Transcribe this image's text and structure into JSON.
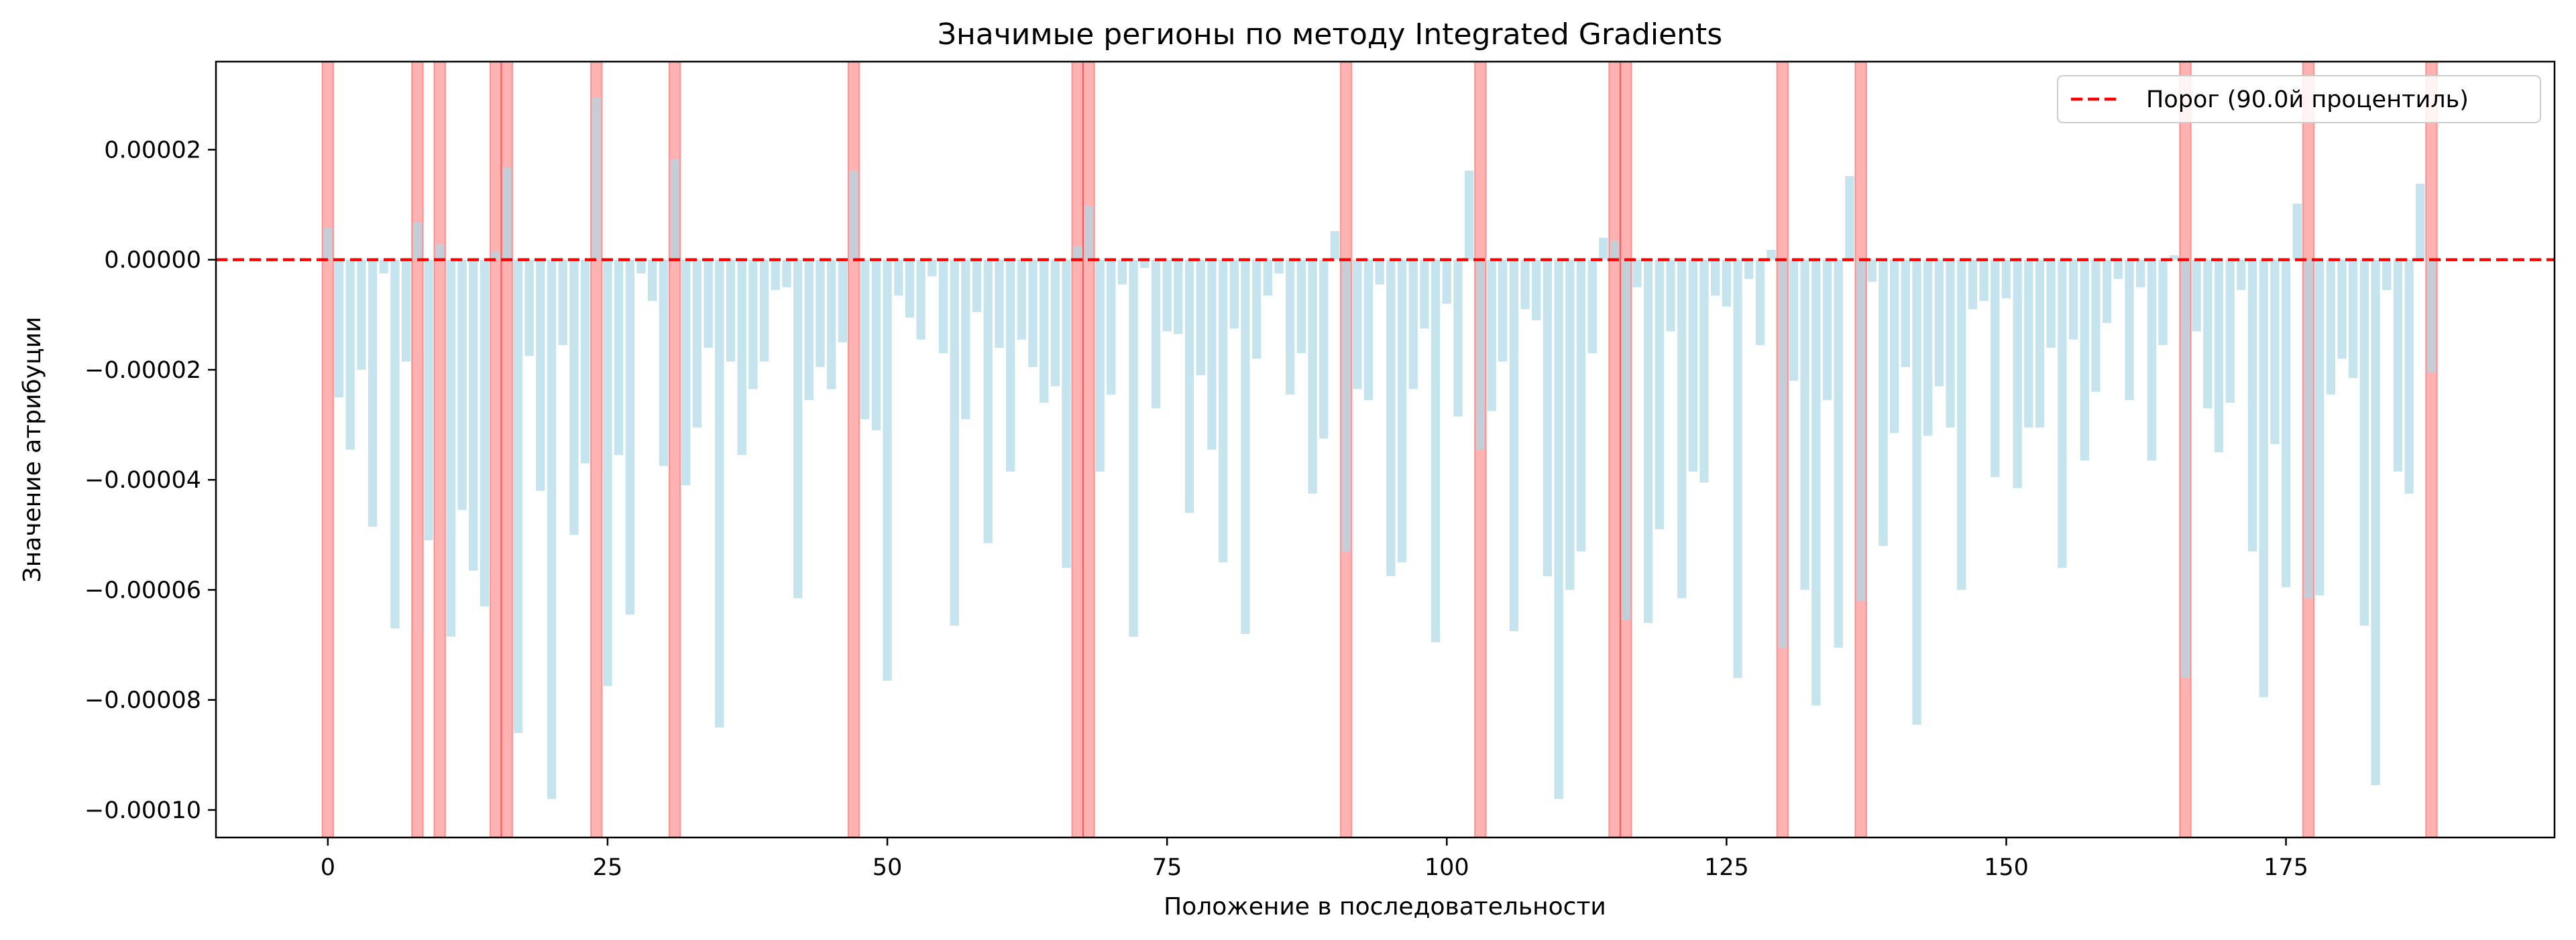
{
  "chart_data": {
    "type": "bar",
    "title": "Значимые регионы по методу Integrated Gradients",
    "xlabel": "Положение в последовательности",
    "ylabel": "Значение атрибуции",
    "xlim": [
      -10,
      199
    ],
    "ylim": [
      -0.000105,
      3.6e-05
    ],
    "x_ticks": [
      0,
      25,
      50,
      75,
      100,
      125,
      150,
      175
    ],
    "x_tick_labels": [
      "0",
      "25",
      "50",
      "75",
      "100",
      "125",
      "150",
      "175"
    ],
    "y_ticks": [
      2e-05,
      0.0,
      -2e-05,
      -4e-05,
      -6e-05,
      -8e-05,
      -0.0001
    ],
    "y_tick_labels": [
      "0.00002",
      "0.00000",
      "−0.00002",
      "−0.00004",
      "−0.00006",
      "−0.00008",
      "−0.00010"
    ],
    "bar_color": "#add8e6",
    "threshold": {
      "value": 0.0,
      "label": "Порог (90.0й процентиль)",
      "color": "#ff0000"
    },
    "highlight_color": "#ff0000",
    "highlighted_positions": [
      0,
      8,
      10,
      15,
      16,
      24,
      31,
      47,
      67,
      68,
      91,
      103,
      115,
      116,
      130,
      137,
      166,
      177,
      188
    ],
    "legend_position": "top-right",
    "grid": false,
    "values": [
      5.8e-06,
      -2.5e-05,
      -3.45e-05,
      -2e-05,
      -4.85e-05,
      -2.5e-06,
      -6.7e-05,
      -1.85e-05,
      6.8e-06,
      -5.1e-05,
      2.8e-06,
      -6.85e-05,
      -4.55e-05,
      -5.65e-05,
      -6.3e-05,
      1.5e-06,
      1.68e-05,
      -8.6e-05,
      -1.75e-05,
      -4.2e-05,
      -9.8e-05,
      -1.55e-05,
      -5e-05,
      -3.7e-05,
      2.95e-05,
      -7.75e-05,
      -3.55e-05,
      -6.45e-05,
      -2.5e-06,
      -7.5e-06,
      -3.75e-05,
      1.82e-05,
      -4.1e-05,
      -3.05e-05,
      -1.6e-05,
      -8.5e-05,
      -1.85e-05,
      -3.55e-05,
      -2.35e-05,
      -1.85e-05,
      -5.5e-06,
      -5e-06,
      -6.15e-05,
      -2.55e-05,
      -1.95e-05,
      -2.35e-05,
      -1.5e-05,
      1.62e-05,
      -2.9e-05,
      -3.1e-05,
      -7.65e-05,
      -6.5e-06,
      -1.05e-05,
      -1.45e-05,
      -3e-06,
      -1.7e-05,
      -6.65e-05,
      -2.9e-05,
      -9.5e-06,
      -5.15e-05,
      -1.6e-05,
      -3.85e-05,
      -1.45e-05,
      -1.95e-05,
      -2.6e-05,
      -2.3e-05,
      -5.6e-05,
      2.5e-06,
      9.8e-06,
      -3.85e-05,
      -2.45e-05,
      -4.5e-06,
      -6.85e-05,
      -1.5e-06,
      -2.7e-05,
      -1.3e-05,
      -1.35e-05,
      -4.6e-05,
      -2.1e-05,
      -3.45e-05,
      -5.5e-05,
      -1.25e-05,
      -6.8e-05,
      -1.8e-05,
      -6.5e-06,
      -2.5e-06,
      -2.45e-05,
      -1.7e-05,
      -4.25e-05,
      -3.25e-05,
      5.2e-06,
      -5.3e-05,
      -2.35e-05,
      -2.55e-05,
      -4.5e-06,
      -5.75e-05,
      -5.5e-05,
      -2.35e-05,
      -1.25e-05,
      -6.95e-05,
      -8e-06,
      -2.85e-05,
      1.62e-05,
      -3.45e-05,
      -2.75e-05,
      -1.85e-05,
      -6.75e-05,
      -9e-06,
      -1.1e-05,
      -5.75e-05,
      -9.8e-05,
      -6e-05,
      -5.3e-05,
      -1.7e-05,
      4e-06,
      3.5e-06,
      -6.55e-05,
      -5e-06,
      -6.6e-05,
      -4.9e-05,
      -1.3e-05,
      -6.15e-05,
      -3.85e-05,
      -4.05e-05,
      -6.5e-06,
      -8.5e-06,
      -7.6e-05,
      -3.5e-06,
      -1.55e-05,
      1.8e-06,
      -7.05e-05,
      -2.2e-05,
      -6e-05,
      -8.1e-05,
      -2.55e-05,
      -7.05e-05,
      1.52e-05,
      -6.2e-05,
      -4e-06,
      -5.2e-05,
      -3.15e-05,
      -1.95e-05,
      -8.45e-05,
      -3.2e-05,
      -2.3e-05,
      -3.05e-05,
      -6e-05,
      -9e-06,
      -7.5e-06,
      -3.95e-05,
      -7e-06,
      -4.15e-05,
      -3.05e-05,
      -3.05e-05,
      -1.6e-05,
      -5.6e-05,
      -1.45e-05,
      -3.65e-05,
      -2.4e-05,
      -1.15e-05,
      -3.5e-06,
      -2.55e-05,
      -5e-06,
      -3.65e-05,
      -1.55e-05,
      8e-07,
      -7.6e-05,
      -1.3e-05,
      -2.7e-05,
      -3.5e-05,
      -2.6e-05,
      -5.5e-06,
      -5.3e-05,
      -7.95e-05,
      -3.35e-05,
      -5.95e-05,
      1.02e-05,
      -6.15e-05,
      -6.1e-05,
      -2.45e-05,
      -1.8e-05,
      -2.15e-05,
      -6.65e-05,
      -9.55e-05,
      -5.5e-06,
      -3.85e-05,
      -4.25e-05,
      1.38e-05,
      -2.05e-05
    ]
  }
}
